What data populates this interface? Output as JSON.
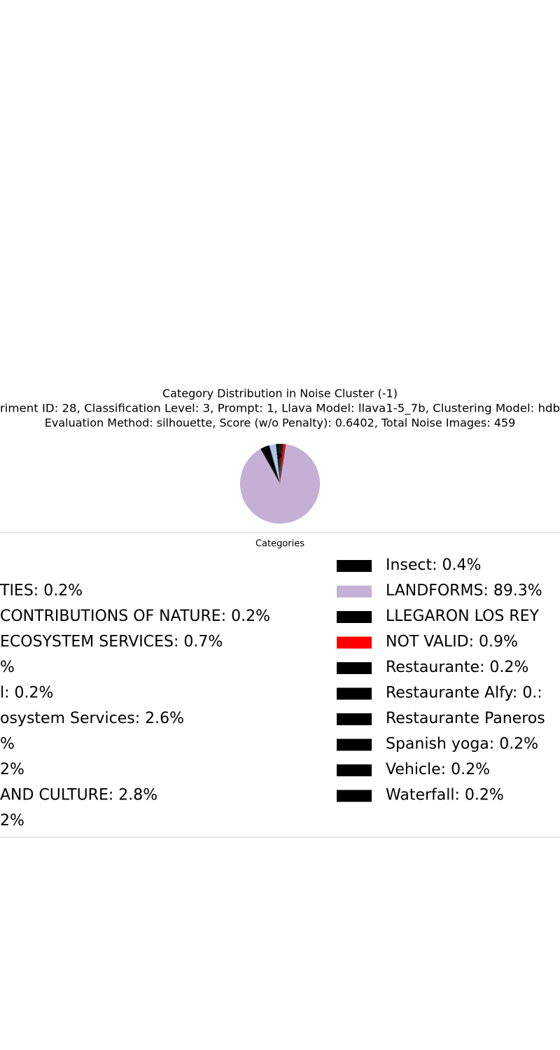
{
  "chart_data": {
    "type": "pie",
    "title": "Category Distribution in Noise Cluster (-1)",
    "subtitle": [
      "riment ID: 28, Classification Level: 3, Prompt: 1, Llava Model: llava1-5_7b, Clustering Model: hdb",
      "Evaluation Method: silhouette, Score (w/o Penalty): 0.6402, Total Noise Images: 459"
    ],
    "legend_title": "Categories",
    "legend_labels": [
      null,
      "TIES: 0.2%",
      "CONTRIBUTIONS OF NATURE: 0.2%",
      "ECOSYSTEM SERVICES: 0.7%",
      "%",
      "l: 0.2%",
      "osystem Services: 2.6%",
      "%",
      "2%",
      "AND CULTURE: 2.8%",
      "2%",
      "Insect: 0.4%",
      "LANDFORMS: 89.3%",
      "LLEGARON LOS REY",
      "NOT VALID: 0.9%",
      "Restaurante: 0.2%",
      "Restaurante Alfy: 0.:",
      "Restaurante Paneros",
      "Spanish yoga: 0.2%",
      "Vehicle: 0.2%",
      "Waterfall: 0.2%"
    ],
    "values": [
      0.2,
      0.2,
      0.2,
      0.7,
      0.2,
      0.2,
      2.6,
      0.2,
      0.2,
      2.8,
      0.2,
      0.4,
      89.3,
      0.2,
      0.9,
      0.2,
      0.2,
      0.2,
      0.2,
      0.2,
      0.2
    ],
    "colors": [
      "#000000",
      "#000000",
      "#000000",
      "#000000",
      "#000000",
      "#000000",
      "#aec7e8",
      "#000000",
      "#000000",
      "#000000",
      "#000000",
      "#000000",
      "#c5b0d5",
      "#000000",
      "#ff0000",
      "#000000",
      "#000000",
      "#000000",
      "#000000",
      "#000000",
      "#000000"
    ]
  }
}
